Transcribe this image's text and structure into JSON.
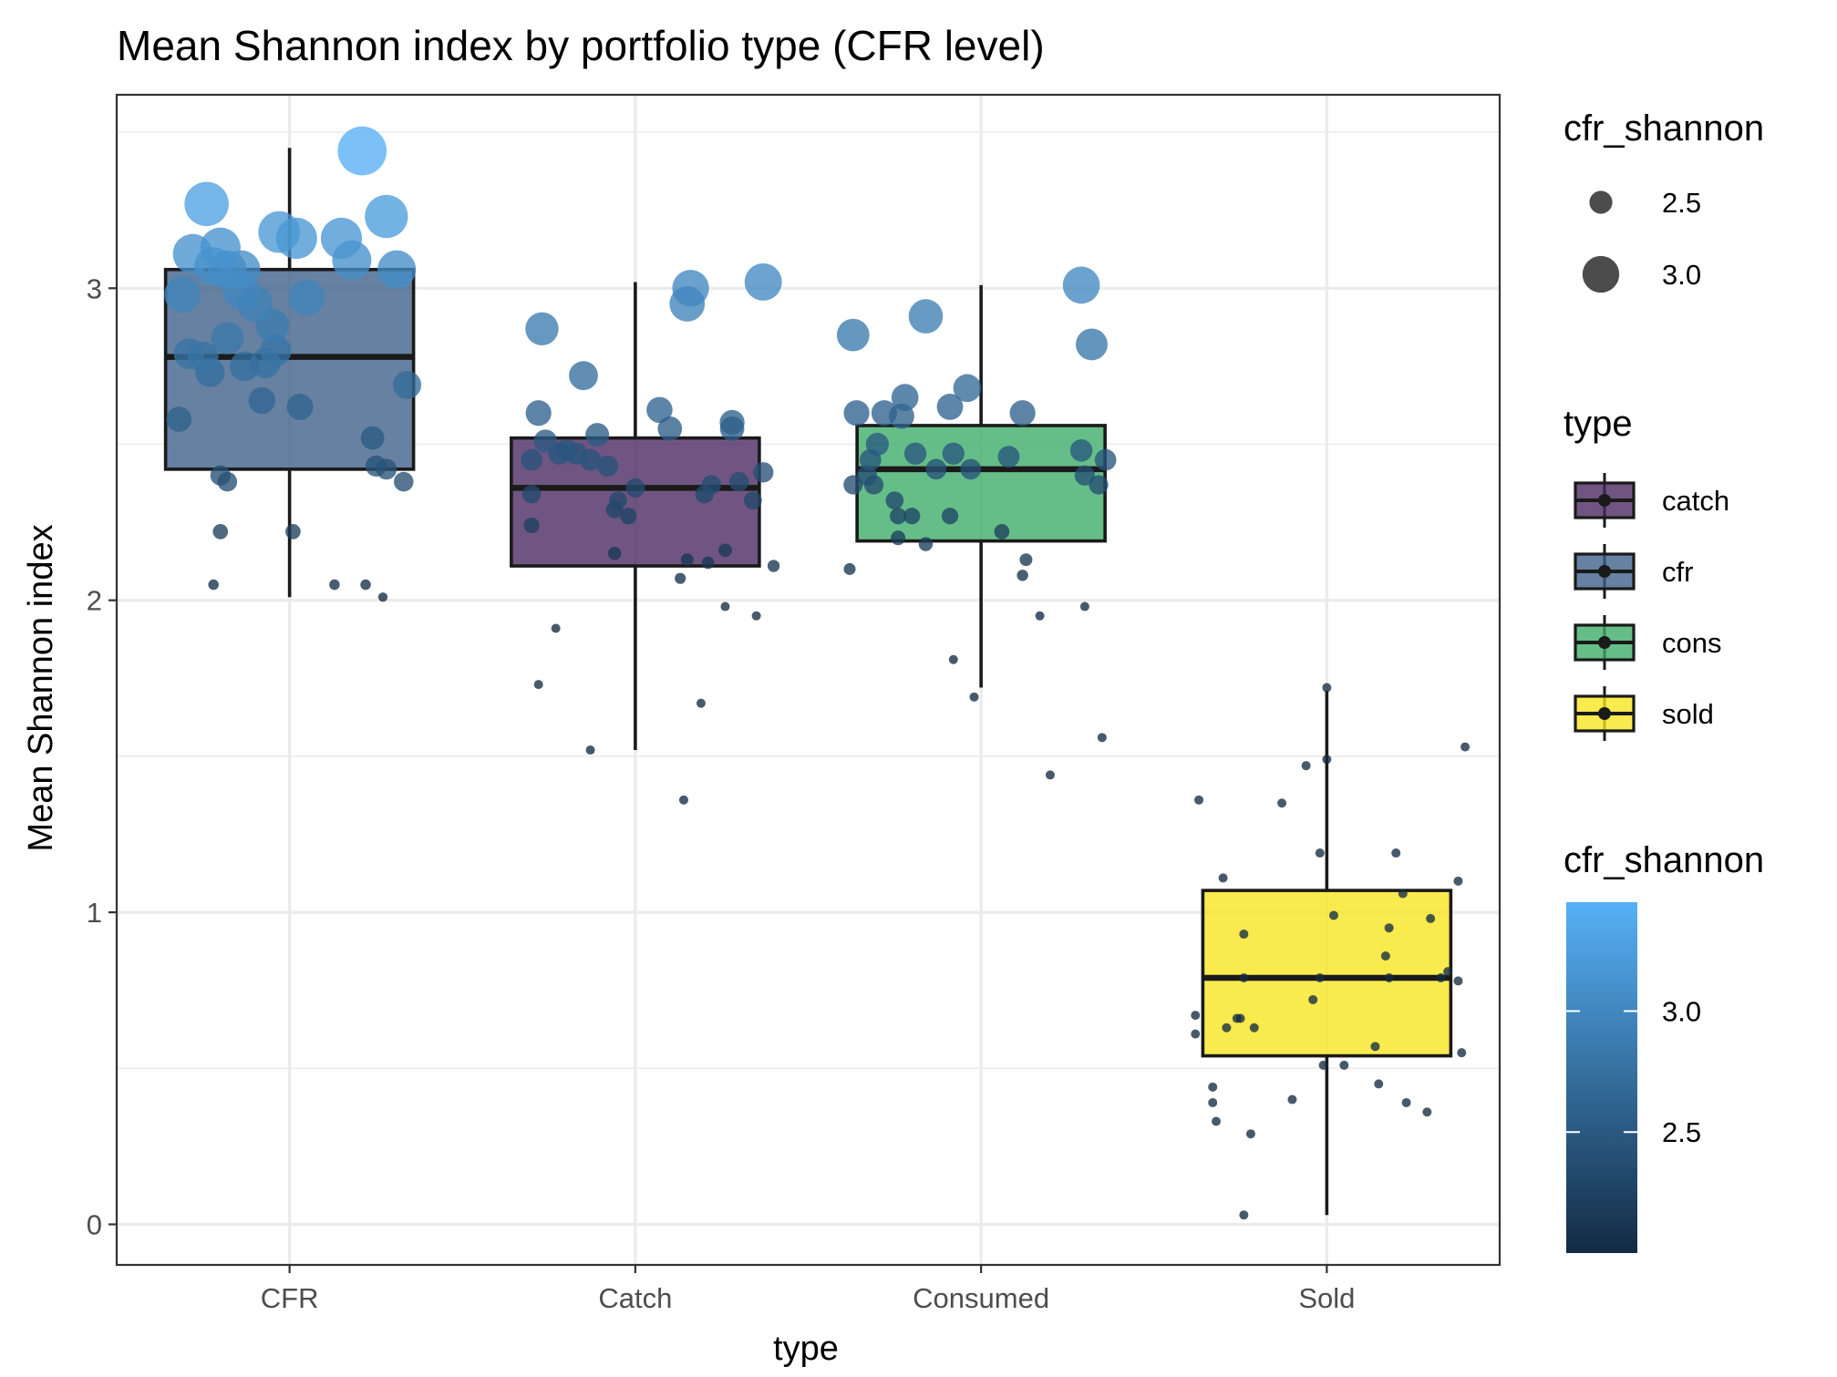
{
  "chart_data": {
    "type": "boxplot",
    "title": "Mean Shannon index by portfolio type (CFR level)",
    "xlabel": "type",
    "ylabel": "Mean Shannon index",
    "categories": [
      "CFR",
      "Catch",
      "Consumed",
      "Sold"
    ],
    "yticks": [
      0,
      1,
      2,
      3
    ],
    "ylim": [
      -0.13,
      3.62
    ],
    "grid": true,
    "legend_position": "right",
    "boxes": [
      {
        "category": "CFR",
        "group": "cfr",
        "fill": "#3b5e86",
        "q1": 2.42,
        "median": 2.78,
        "q3": 3.06,
        "whisker_low": 2.01,
        "whisker_high": 3.45
      },
      {
        "category": "Catch",
        "group": "catch",
        "fill": "#48255f",
        "q1": 2.11,
        "median": 2.36,
        "q3": 2.52,
        "whisker_low": 1.52,
        "whisker_high": 3.02
      },
      {
        "category": "Consumed",
        "group": "cons",
        "fill": "#3aac67",
        "q1": 2.19,
        "median": 2.42,
        "q3": 2.56,
        "whisker_low": 1.72,
        "whisker_high": 3.01
      },
      {
        "category": "Sold",
        "group": "sold",
        "fill": "#f7e41c",
        "q1": 0.54,
        "median": 0.79,
        "q3": 1.07,
        "whisker_low": 0.03,
        "whisker_high": 1.71
      }
    ],
    "points": [
      {
        "category": "CFR",
        "points": [
          [
            -0.31,
            2.98
          ],
          [
            -0.28,
            3.11
          ],
          [
            -0.24,
            3.27
          ],
          [
            -0.22,
            3.07
          ],
          [
            -0.2,
            3.13
          ],
          [
            -0.29,
            2.79
          ],
          [
            -0.25,
            2.78
          ],
          [
            -0.23,
            2.73
          ],
          [
            -0.18,
            2.84
          ],
          [
            -0.18,
            3.06
          ],
          [
            -0.14,
            3.06
          ],
          [
            -0.14,
            2.99
          ],
          [
            -0.13,
            2.75
          ],
          [
            -0.1,
            2.95
          ],
          [
            -0.08,
            2.64
          ],
          [
            -0.07,
            2.76
          ],
          [
            -0.05,
            2.88
          ],
          [
            -0.04,
            2.8
          ],
          [
            -0.03,
            3.18
          ],
          [
            0.02,
            3.16
          ],
          [
            0.03,
            2.62
          ],
          [
            0.05,
            2.97
          ],
          [
            0.15,
            3.16
          ],
          [
            0.18,
            3.09
          ],
          [
            0.21,
            3.44
          ],
          [
            0.24,
            2.52
          ],
          [
            0.28,
            3.23
          ],
          [
            0.31,
            3.06
          ],
          [
            0.34,
            2.69
          ],
          [
            0.25,
            2.43
          ],
          [
            0.28,
            2.42
          ],
          [
            0.33,
            2.38
          ],
          [
            -0.2,
            2.4
          ],
          [
            -0.18,
            2.38
          ],
          [
            -0.2,
            2.22
          ],
          [
            0.01,
            2.22
          ],
          [
            -0.22,
            2.05
          ],
          [
            0.13,
            2.05
          ],
          [
            0.22,
            2.05
          ],
          [
            0.27,
            2.01
          ],
          [
            -0.32,
            2.58
          ]
        ]
      },
      {
        "category": "Catch",
        "points": [
          [
            -0.28,
            2.6
          ],
          [
            -0.3,
            2.34
          ],
          [
            -0.3,
            2.24
          ],
          [
            -0.3,
            2.45
          ],
          [
            -0.27,
            2.87
          ],
          [
            -0.26,
            2.51
          ],
          [
            -0.22,
            2.47
          ],
          [
            -0.2,
            2.48
          ],
          [
            -0.17,
            2.47
          ],
          [
            -0.13,
            2.45
          ],
          [
            -0.15,
            2.72
          ],
          [
            -0.11,
            2.53
          ],
          [
            -0.08,
            2.43
          ],
          [
            -0.06,
            2.29
          ],
          [
            -0.05,
            2.32
          ],
          [
            -0.02,
            2.27
          ],
          [
            0.0,
            2.36
          ],
          [
            0.07,
            2.61
          ],
          [
            0.1,
            2.55
          ],
          [
            0.13,
            2.07
          ],
          [
            0.15,
            2.13
          ],
          [
            0.15,
            2.95
          ],
          [
            0.16,
            3.0
          ],
          [
            0.2,
            2.34
          ],
          [
            0.21,
            2.12
          ],
          [
            0.22,
            2.37
          ],
          [
            0.26,
            2.16
          ],
          [
            0.28,
            2.57
          ],
          [
            0.28,
            2.55
          ],
          [
            0.3,
            2.38
          ],
          [
            0.34,
            2.32
          ],
          [
            0.35,
            1.95
          ],
          [
            0.37,
            2.41
          ],
          [
            0.37,
            3.02
          ],
          [
            0.4,
            2.11
          ],
          [
            -0.23,
            1.91
          ],
          [
            -0.06,
            2.15
          ],
          [
            0.26,
            1.98
          ],
          [
            -0.28,
            1.73
          ],
          [
            -0.13,
            1.52
          ],
          [
            0.19,
            1.67
          ],
          [
            0.14,
            1.36
          ]
        ]
      },
      {
        "category": "Consumed",
        "points": [
          [
            -0.38,
            2.1
          ],
          [
            -0.37,
            2.85
          ],
          [
            -0.37,
            2.37
          ],
          [
            -0.36,
            2.6
          ],
          [
            -0.33,
            2.4
          ],
          [
            -0.32,
            2.45
          ],
          [
            -0.31,
            2.37
          ],
          [
            -0.3,
            2.5
          ],
          [
            -0.28,
            2.6
          ],
          [
            -0.25,
            2.32
          ],
          [
            -0.24,
            2.2
          ],
          [
            -0.24,
            2.27
          ],
          [
            -0.23,
            2.59
          ],
          [
            -0.22,
            2.65
          ],
          [
            -0.2,
            2.27
          ],
          [
            -0.19,
            2.47
          ],
          [
            -0.16,
            2.91
          ],
          [
            -0.16,
            2.18
          ],
          [
            -0.13,
            2.42
          ],
          [
            -0.09,
            2.62
          ],
          [
            -0.09,
            2.27
          ],
          [
            -0.08,
            2.47
          ],
          [
            -0.04,
            2.68
          ],
          [
            -0.03,
            2.42
          ],
          [
            -0.02,
            1.69
          ],
          [
            0.06,
            2.22
          ],
          [
            0.08,
            2.46
          ],
          [
            0.12,
            2.6
          ],
          [
            0.13,
            2.13
          ],
          [
            0.12,
            2.08
          ],
          [
            0.17,
            1.95
          ],
          [
            0.2,
            1.44
          ],
          [
            0.29,
            2.48
          ],
          [
            0.29,
            3.01
          ],
          [
            0.3,
            2.4
          ],
          [
            0.3,
            1.98
          ],
          [
            0.32,
            2.82
          ],
          [
            0.34,
            2.37
          ],
          [
            0.36,
            2.45
          ],
          [
            0.35,
            1.56
          ],
          [
            -0.08,
            1.81
          ]
        ]
      },
      {
        "category": "Sold",
        "points": [
          [
            -0.38,
            0.61
          ],
          [
            -0.38,
            0.67
          ],
          [
            -0.37,
            1.36
          ],
          [
            -0.33,
            0.44
          ],
          [
            -0.33,
            0.39
          ],
          [
            -0.32,
            0.33
          ],
          [
            -0.3,
            1.11
          ],
          [
            -0.29,
            0.63
          ],
          [
            -0.26,
            0.66
          ],
          [
            -0.25,
            0.66
          ],
          [
            -0.24,
            0.03
          ],
          [
            -0.24,
            0.79
          ],
          [
            -0.24,
            0.93
          ],
          [
            -0.22,
            0.29
          ],
          [
            -0.21,
            0.63
          ],
          [
            -0.13,
            1.35
          ],
          [
            -0.1,
            0.4
          ],
          [
            -0.06,
            1.47
          ],
          [
            -0.04,
            0.72
          ],
          [
            -0.02,
            0.79
          ],
          [
            -0.01,
            0.51
          ],
          [
            0.0,
            1.72
          ],
          [
            0.0,
            1.49
          ],
          [
            0.02,
            0.99
          ],
          [
            -0.02,
            1.19
          ],
          [
            0.05,
            0.51
          ],
          [
            0.14,
            0.57
          ],
          [
            0.17,
            0.86
          ],
          [
            0.18,
            0.95
          ],
          [
            0.18,
            0.79
          ],
          [
            0.2,
            1.19
          ],
          [
            0.22,
            1.06
          ],
          [
            0.23,
            0.39
          ],
          [
            0.29,
            0.36
          ],
          [
            0.3,
            0.98
          ],
          [
            0.33,
            0.79
          ],
          [
            0.35,
            0.81
          ],
          [
            0.38,
            0.78
          ],
          [
            0.38,
            1.1
          ],
          [
            0.39,
            0.55
          ],
          [
            0.4,
            1.53
          ],
          [
            0.15,
            0.45
          ]
        ]
      }
    ]
  },
  "legend": {
    "size_title": "cfr_shannon",
    "size_items": [
      {
        "label": "2.5",
        "value": 2.5
      },
      {
        "label": "3.0",
        "value": 3.0
      }
    ],
    "type_title": "type",
    "type_items": [
      {
        "label": "catch",
        "color": "#48255f"
      },
      {
        "label": "cfr",
        "color": "#3b5e86"
      },
      {
        "label": "cons",
        "color": "#3aac67"
      },
      {
        "label": "sold",
        "color": "#f7e41c"
      }
    ],
    "color_title": "cfr_shannon",
    "colorbar_ticks": [
      "2.5",
      "3.0"
    ],
    "colorbar_range": [
      2.0,
      3.45
    ],
    "colorbar_stops": [
      "#132b43",
      "#56b1f7"
    ]
  },
  "colors": {
    "point_low": "#132b43",
    "point_high": "#56b1f7",
    "grid": "#ebebeb",
    "panel_border": "#333333"
  }
}
